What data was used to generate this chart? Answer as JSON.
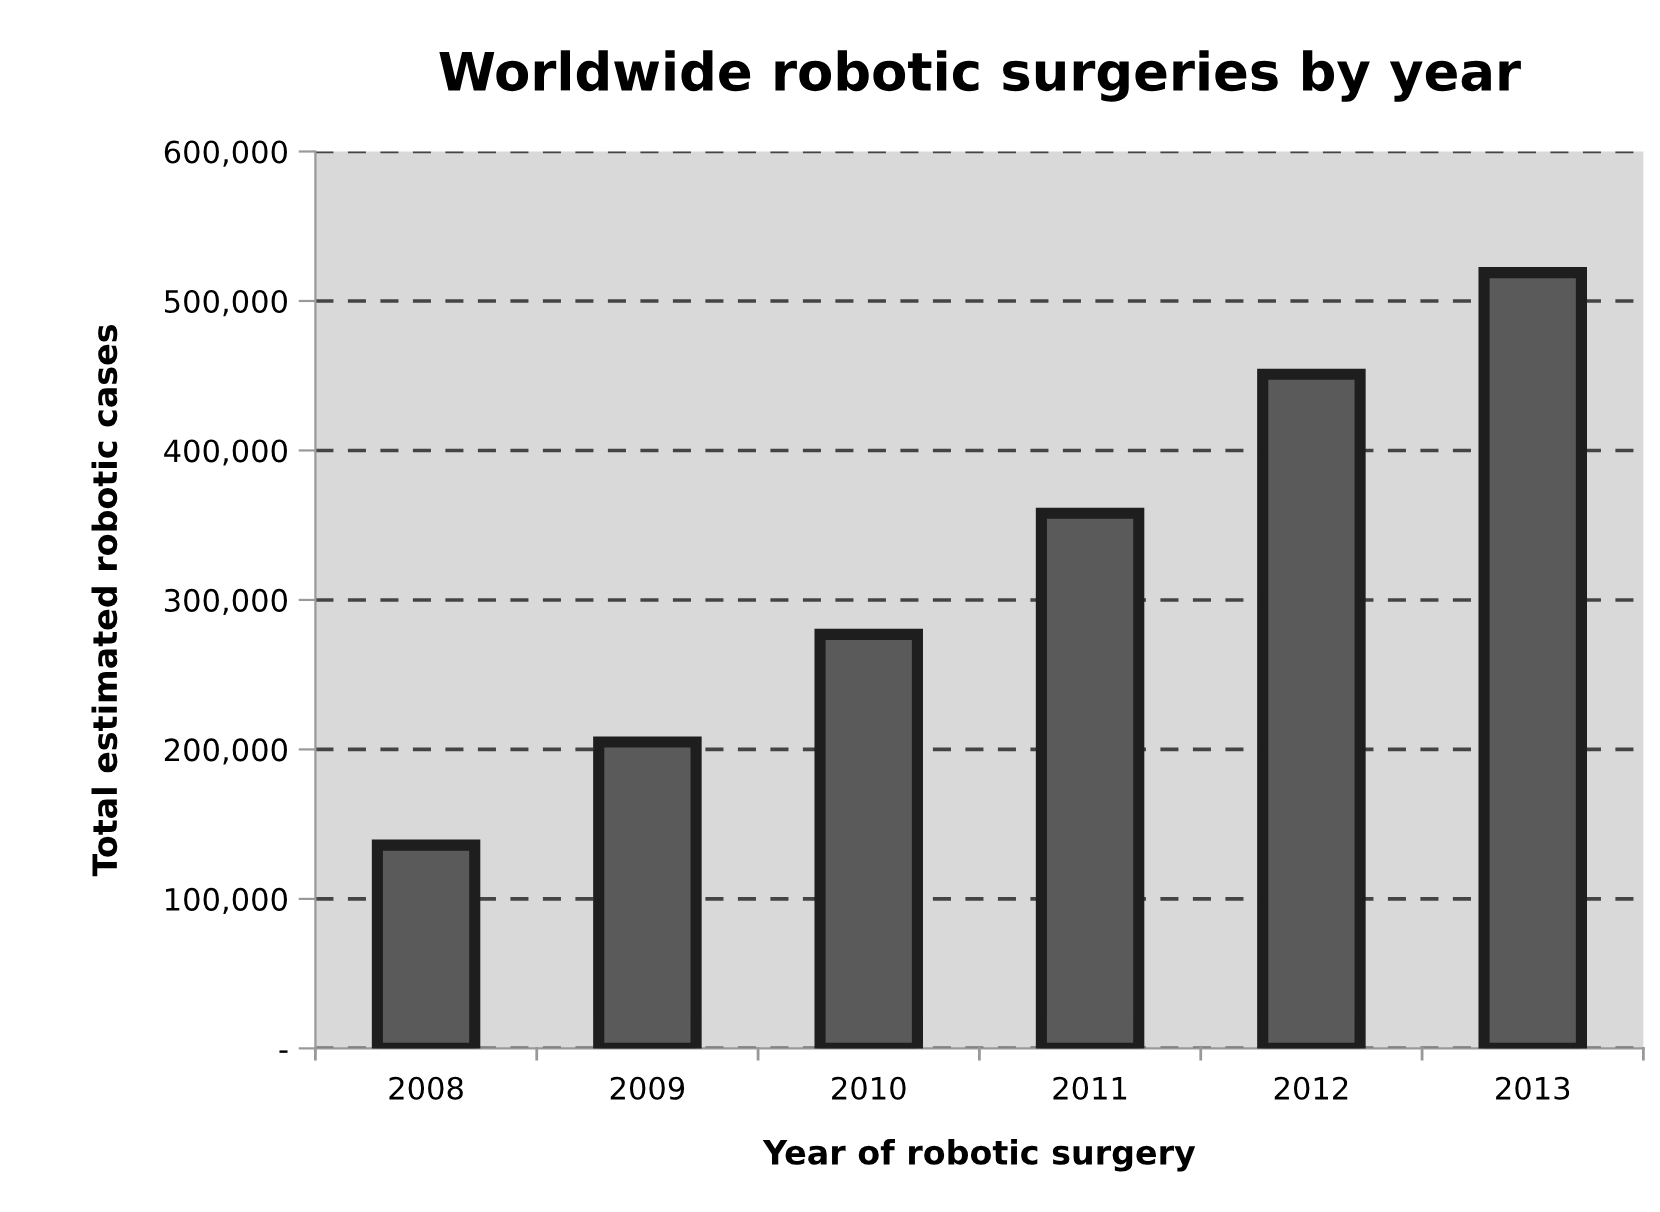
{
  "chart_data": {
    "type": "bar",
    "title": "Worldwide robotic surgeries by year",
    "xlabel": "Year of robotic surgery",
    "ylabel": "Total estimated robotic cases",
    "categories": [
      "2008",
      "2009",
      "2010",
      "2011",
      "2012",
      "2013"
    ],
    "values": [
      136000,
      205000,
      277000,
      358000,
      451000,
      519000
    ],
    "color": "#5a5a5a",
    "ylim": [
      0,
      600000
    ],
    "yticks": [
      {
        "value": 0,
        "label": "-"
      },
      {
        "value": 100000,
        "label": "100,000"
      },
      {
        "value": 200000,
        "label": "200,000"
      },
      {
        "value": 300000,
        "label": "300,000"
      },
      {
        "value": 400000,
        "label": "400,000"
      },
      {
        "value": 500000,
        "label": "500,000"
      },
      {
        "value": 600000,
        "label": "600,000"
      }
    ],
    "grid": "y",
    "line_style": "dashed",
    "legend": false
  }
}
